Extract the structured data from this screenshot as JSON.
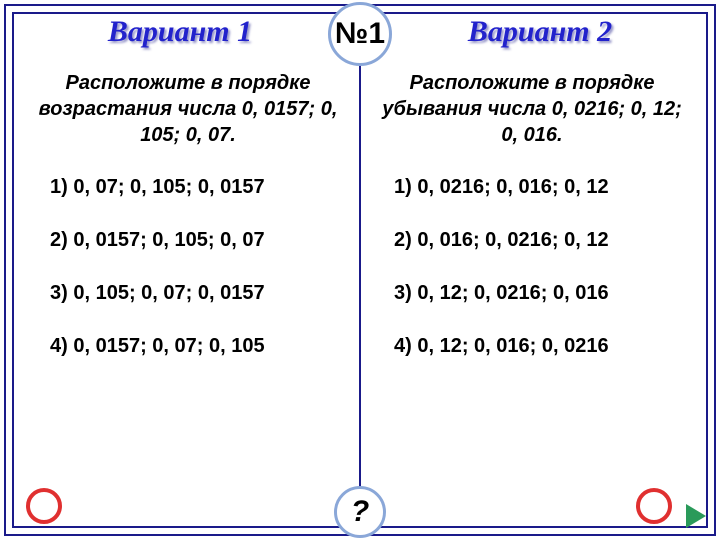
{
  "badge_top": "№1",
  "badge_bottom": "?",
  "colors": {
    "frame": "#1a1a8a",
    "title": "#2222cc",
    "badge_border": "#8aa7d8",
    "circle": "#e03030",
    "nav": "#2a9a5a",
    "background": "#ffffff",
    "text": "#000000"
  },
  "left": {
    "title": "Вариант 1",
    "prompt": "Расположите в порядке возрастания числа 0, 0157; 0, 105; 0, 07.",
    "options": [
      "1)   0, 07; 0, 105; 0, 0157",
      "2) 0, 0157; 0, 105; 0, 07",
      "3) 0, 105; 0, 07; 0, 0157",
      "4) 0, 0157; 0, 07; 0, 105"
    ]
  },
  "right": {
    "title": "Вариант 2",
    "prompt": "Расположите в порядке убывания числа 0, 0216; 0, 12; 0, 016.",
    "options": [
      "1)  0, 0216; 0, 016; 0, 12",
      "2) 0, 016; 0, 0216; 0, 12",
      "3) 0, 12; 0, 0216; 0, 016",
      "4) 0, 12; 0, 016; 0, 0216"
    ]
  }
}
